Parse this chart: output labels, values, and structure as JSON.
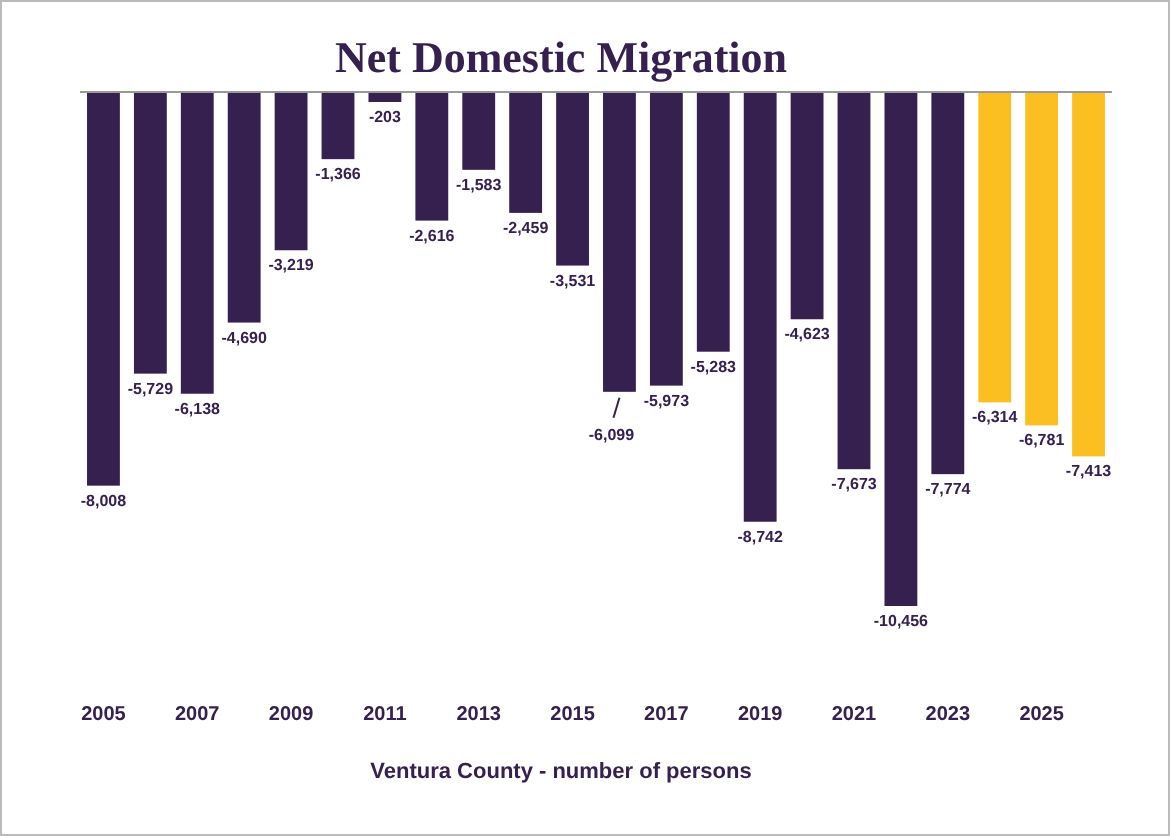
{
  "chart_data": {
    "type": "bar",
    "title": "Net Domestic Migration",
    "xlabel": "Ventura County - number of persons",
    "categories": [
      "2005",
      null,
      "2007",
      null,
      "2009",
      null,
      "2011",
      null,
      "2013",
      null,
      "2015",
      null,
      "2017",
      null,
      "2019",
      null,
      "2021",
      null,
      "2023",
      null,
      "2025",
      null
    ],
    "values": [
      -8008,
      -5729,
      -6138,
      -4690,
      -3219,
      -1366,
      -203,
      -2616,
      -1583,
      -2459,
      -3531,
      -6099,
      -5973,
      -5283,
      -8742,
      -4623,
      -7673,
      -10456,
      -7774,
      -6314,
      -6781,
      -7413
    ],
    "colors": [
      "#35204f",
      "#35204f",
      "#35204f",
      "#35204f",
      "#35204f",
      "#35204f",
      "#35204f",
      "#35204f",
      "#35204f",
      "#35204f",
      "#35204f",
      "#35204f",
      "#35204f",
      "#35204f",
      "#35204f",
      "#35204f",
      "#35204f",
      "#35204f",
      "#35204f",
      "#fcbf22",
      "#fcbf22",
      "#fcbf22"
    ],
    "value_labels": [
      "-8,008",
      "-5,729",
      "-6,138",
      "-4,690",
      "-3,219",
      "-1,366",
      "-203",
      "-2,616",
      "-1,583",
      "-2,459",
      "-3,531",
      "-6,099",
      "-5,973",
      "-5,283",
      "-8,742",
      "-4,623",
      "-7,673",
      "-10,456",
      "-7,774",
      "-6,314",
      "-6,781",
      "-7,413"
    ]
  }
}
